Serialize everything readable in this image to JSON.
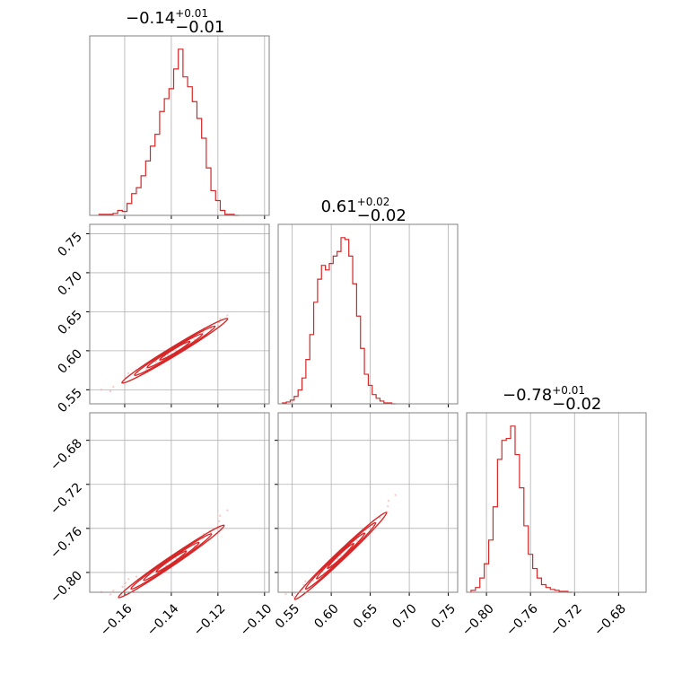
{
  "colors": {
    "line": "#d62728",
    "grid": "#b0b0b0",
    "frame": "#808080",
    "scatter": "#f4a6a6"
  },
  "chart_data": {
    "type": "corner",
    "parameters": [
      {
        "title_base": "−0.14",
        "title_plus": "+0.01",
        "title_minus": "−0.01",
        "range": [
          -0.175,
          -0.098
        ],
        "ticks": [
          -0.16,
          -0.14,
          -0.12,
          -0.1
        ],
        "tick_labels": [
          "−0.16",
          "−0.14",
          "−0.12",
          "−0.10"
        ],
        "hist": {
          "x": [
            -0.17,
            -0.168,
            -0.166,
            -0.164,
            -0.162,
            -0.16,
            -0.158,
            -0.156,
            -0.154,
            -0.152,
            -0.15,
            -0.148,
            -0.146,
            -0.144,
            -0.142,
            -0.14,
            -0.138,
            -0.136,
            -0.134,
            -0.132,
            -0.13,
            -0.128,
            -0.126,
            -0.124,
            -0.122,
            -0.12,
            -0.118,
            -0.116,
            -0.114,
            -0.112
          ],
          "counts": [
            1,
            1,
            1,
            2,
            5,
            4,
            12,
            22,
            28,
            40,
            55,
            70,
            82,
            105,
            118,
            128,
            148,
            168,
            140,
            130,
            115,
            98,
            78,
            48,
            25,
            15,
            5,
            1,
            1,
            0
          ]
        }
      },
      {
        "title_base": "0.61",
        "title_plus": "+0.02",
        "title_minus": "−0.02",
        "range": [
          0.532,
          0.762
        ],
        "ticks": [
          0.55,
          0.6,
          0.65,
          0.7,
          0.75
        ],
        "tick_labels": [
          "0.55",
          "0.60",
          "0.65",
          "0.70",
          "0.75"
        ],
        "hist": {
          "x": [
            0.54,
            0.545,
            0.55,
            0.555,
            0.56,
            0.565,
            0.57,
            0.575,
            0.58,
            0.585,
            0.59,
            0.595,
            0.6,
            0.605,
            0.61,
            0.615,
            0.62,
            0.625,
            0.63,
            0.635,
            0.64,
            0.645,
            0.65,
            0.655,
            0.66,
            0.665,
            0.67,
            0.675,
            0.68
          ],
          "counts": [
            1,
            2,
            4,
            8,
            15,
            28,
            48,
            75,
            110,
            135,
            150,
            145,
            152,
            160,
            165,
            180,
            178,
            160,
            130,
            95,
            60,
            32,
            20,
            10,
            6,
            3,
            1,
            1,
            0
          ]
        }
      },
      {
        "title_base": "−0.78",
        "title_plus": "+0.01",
        "title_minus": "−0.02",
        "range": [
          -0.818,
          -0.655
        ],
        "ticks": [
          -0.8,
          -0.76,
          -0.72,
          -0.68
        ],
        "tick_labels": [
          "−0.80",
          "−0.76",
          "−0.72",
          "−0.68"
        ],
        "hist": {
          "x": [
            -0.812,
            -0.808,
            -0.804,
            -0.8,
            -0.796,
            -0.792,
            -0.788,
            -0.784,
            -0.78,
            -0.776,
            -0.772,
            -0.768,
            -0.764,
            -0.76,
            -0.756,
            -0.752,
            -0.748,
            -0.744,
            -0.74,
            -0.736,
            -0.732,
            -0.728,
            -0.724
          ],
          "counts": [
            2,
            5,
            15,
            30,
            55,
            90,
            140,
            160,
            162,
            175,
            145,
            110,
            70,
            40,
            25,
            15,
            8,
            5,
            3,
            2,
            1,
            1,
            0
          ]
        }
      }
    ],
    "contours": [
      {
        "row": 1,
        "col": 0,
        "center": [
          -0.1385,
          0.6
        ],
        "line": [
          [
            -0.169,
            0.547
          ],
          [
            -0.155,
            0.572
          ],
          [
            -0.144,
            0.59
          ],
          [
            -0.133,
            0.61
          ],
          [
            -0.124,
            0.628
          ],
          [
            -0.115,
            0.645
          ]
        ]
      },
      {
        "row": 2,
        "col": 0,
        "center": [
          -0.14,
          -0.79
        ],
        "line": [
          [
            -0.169,
            -0.82
          ],
          [
            -0.155,
            -0.806
          ],
          [
            -0.144,
            -0.794
          ],
          [
            -0.133,
            -0.78
          ],
          [
            -0.124,
            -0.765
          ],
          [
            -0.115,
            -0.742
          ]
        ]
      },
      {
        "row": 2,
        "col": 1,
        "center": [
          0.612,
          -0.785
        ],
        "line": [
          [
            0.545,
            -0.822
          ],
          [
            0.575,
            -0.808
          ],
          [
            0.605,
            -0.79
          ],
          [
            0.635,
            -0.77
          ],
          [
            0.66,
            -0.752
          ],
          [
            0.685,
            -0.728
          ]
        ]
      }
    ]
  }
}
